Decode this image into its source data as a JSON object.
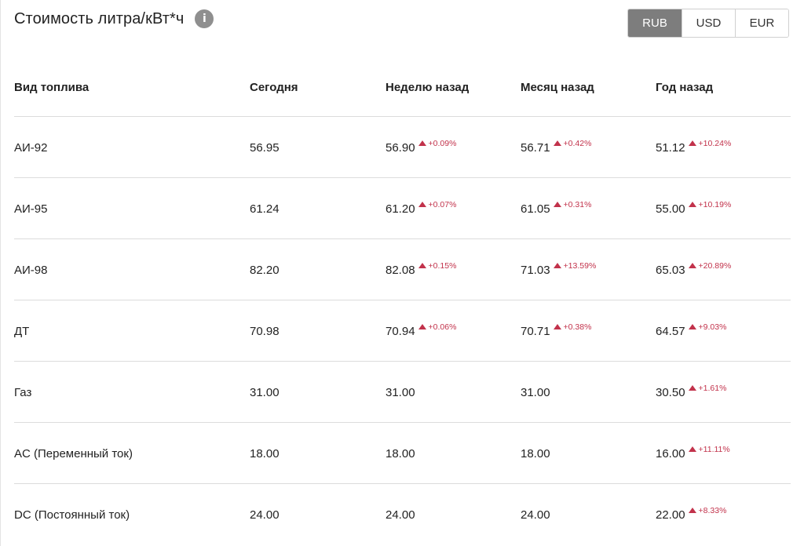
{
  "header": {
    "title": "Стоимость литра/кВт*ч",
    "info_icon": "i"
  },
  "currency": {
    "options": [
      "RUB",
      "USD",
      "EUR"
    ],
    "selected": "RUB"
  },
  "colors": {
    "increase": "#c2324b",
    "active_button": "#7d7d7d"
  },
  "table": {
    "columns": [
      "Вид топлива",
      "Сегодня",
      "Неделю назад",
      "Месяц назад",
      "Год назад"
    ],
    "rows": [
      {
        "fuel": "АИ-92",
        "today": "56.95",
        "week": {
          "value": "56.90",
          "change": "+0.09%"
        },
        "month": {
          "value": "56.71",
          "change": "+0.42%"
        },
        "year": {
          "value": "51.12",
          "change": "+10.24%"
        }
      },
      {
        "fuel": "АИ-95",
        "today": "61.24",
        "week": {
          "value": "61.20",
          "change": "+0.07%"
        },
        "month": {
          "value": "61.05",
          "change": "+0.31%"
        },
        "year": {
          "value": "55.00",
          "change": "+10.19%"
        }
      },
      {
        "fuel": "АИ-98",
        "today": "82.20",
        "week": {
          "value": "82.08",
          "change": "+0.15%"
        },
        "month": {
          "value": "71.03",
          "change": "+13.59%"
        },
        "year": {
          "value": "65.03",
          "change": "+20.89%"
        }
      },
      {
        "fuel": "ДТ",
        "today": "70.98",
        "week": {
          "value": "70.94",
          "change": "+0.06%"
        },
        "month": {
          "value": "70.71",
          "change": "+0.38%"
        },
        "year": {
          "value": "64.57",
          "change": "+9.03%"
        }
      },
      {
        "fuel": "Газ",
        "today": "31.00",
        "week": {
          "value": "31.00",
          "change": ""
        },
        "month": {
          "value": "31.00",
          "change": ""
        },
        "year": {
          "value": "30.50",
          "change": "+1.61%"
        }
      },
      {
        "fuel": "AC (Переменный ток)",
        "today": "18.00",
        "week": {
          "value": "18.00",
          "change": ""
        },
        "month": {
          "value": "18.00",
          "change": ""
        },
        "year": {
          "value": "16.00",
          "change": "+11.11%"
        }
      },
      {
        "fuel": "DC (Постоянный ток)",
        "today": "24.00",
        "week": {
          "value": "24.00",
          "change": ""
        },
        "month": {
          "value": "24.00",
          "change": ""
        },
        "year": {
          "value": "22.00",
          "change": "+8.33%"
        }
      }
    ]
  }
}
